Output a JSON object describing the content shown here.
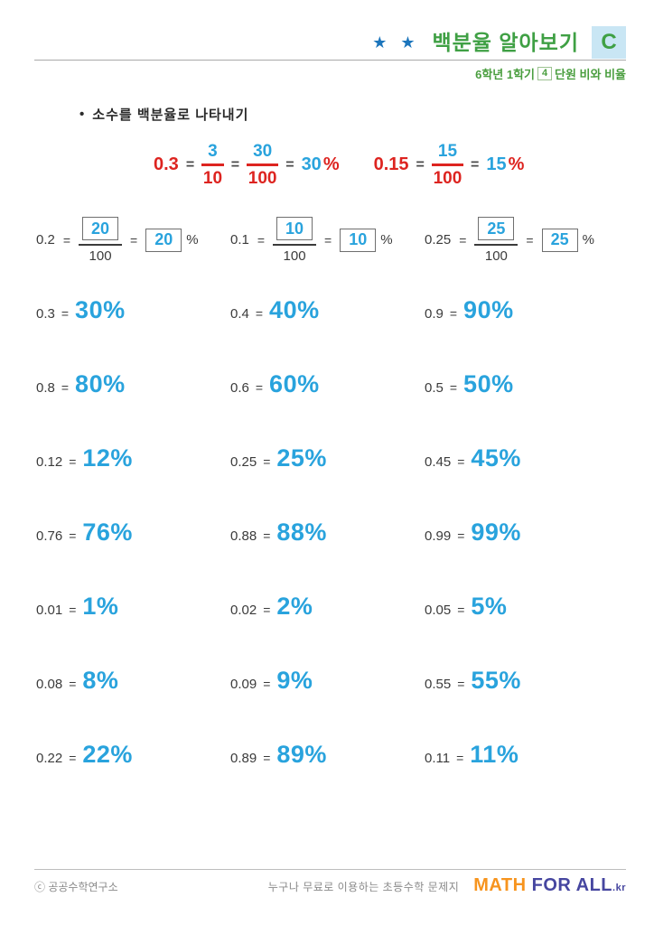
{
  "colors": {
    "accent_blue": "#29a3dd",
    "example_red": "#dd2420",
    "title_green": "#3fa044",
    "badge_bg": "#c9e6f4",
    "star_blue": "#1c75bc",
    "logo_orange": "#f7941e",
    "logo_navy": "#4646a0"
  },
  "header": {
    "stars": "★ ★",
    "title": "백분율 알아보기",
    "grade_badge": "C",
    "subtitle_prefix": "6학년 1학기",
    "subtitle_unit": "4",
    "subtitle_suffix": "단원 비와 비율"
  },
  "instruction": {
    "bullet": "•",
    "text": "소수를 백분율로 나타내기"
  },
  "symbols": {
    "eq": "=",
    "percent": "%"
  },
  "examples": [
    {
      "decimal": "0.3",
      "frac1_num": "3",
      "frac1_den": "10",
      "frac2_num": "30",
      "frac2_den": "100",
      "percent_value": "30"
    },
    {
      "decimal": "0.15",
      "frac1_num": "15",
      "frac1_den": "100",
      "percent_value": "15"
    }
  ],
  "fill_in": [
    {
      "decimal": "0.2",
      "numerator": "20",
      "denominator": "100",
      "percent": "20"
    },
    {
      "decimal": "0.1",
      "numerator": "10",
      "denominator": "100",
      "percent": "10"
    },
    {
      "decimal": "0.25",
      "numerator": "25",
      "denominator": "100",
      "percent": "25"
    }
  ],
  "problems": [
    [
      {
        "decimal": "0.3",
        "answer": "30%"
      },
      {
        "decimal": "0.4",
        "answer": "40%"
      },
      {
        "decimal": "0.9",
        "answer": "90%"
      }
    ],
    [
      {
        "decimal": "0.8",
        "answer": "80%"
      },
      {
        "decimal": "0.6",
        "answer": "60%"
      },
      {
        "decimal": "0.5",
        "answer": "50%"
      }
    ],
    [
      {
        "decimal": "0.12",
        "answer": "12%"
      },
      {
        "decimal": "0.25",
        "answer": "25%"
      },
      {
        "decimal": "0.45",
        "answer": "45%"
      }
    ],
    [
      {
        "decimal": "0.76",
        "answer": "76%"
      },
      {
        "decimal": "0.88",
        "answer": "88%"
      },
      {
        "decimal": "0.99",
        "answer": "99%"
      }
    ],
    [
      {
        "decimal": "0.01",
        "answer": "1%"
      },
      {
        "decimal": "0.02",
        "answer": "2%"
      },
      {
        "decimal": "0.05",
        "answer": "5%"
      }
    ],
    [
      {
        "decimal": "0.08",
        "answer": "8%"
      },
      {
        "decimal": "0.09",
        "answer": "9%"
      },
      {
        "decimal": "0.55",
        "answer": "55%"
      }
    ],
    [
      {
        "decimal": "0.22",
        "answer": "22%"
      },
      {
        "decimal": "0.89",
        "answer": "89%"
      },
      {
        "decimal": "0.11",
        "answer": "11%"
      }
    ]
  ],
  "footer": {
    "copyright": "ⓒ 공공수학연구소",
    "tagline": "누구나 무료로 이용하는 초등수학 문제지",
    "logo_math": "MATH ",
    "logo_forall": "FOR ALL",
    "logo_tld": ".kr"
  }
}
